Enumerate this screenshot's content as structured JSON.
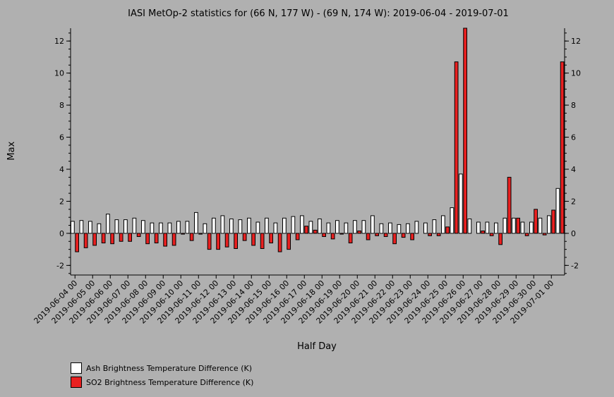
{
  "chart_data": {
    "type": "bar",
    "title": "IASI MetOp-2 statistics for (66 N, 177 W) - (69 N, 174 W): 2019-06-04 - 2019-07-01",
    "xlabel": "Half Day",
    "ylabel": "Max",
    "ylim": [
      -2.6,
      12.8
    ],
    "yticks": [
      -2,
      0,
      2,
      4,
      6,
      8,
      10,
      12
    ],
    "grid": false,
    "legend_position": "bottom-left",
    "x_tick_labels": [
      "2019-06-04 00",
      "2019-06-05 00",
      "2019-06-06 00",
      "2019-06-07 00",
      "2019-06-08 00",
      "2019-06-09 00",
      "2019-06-10 00",
      "2019-06-11 00",
      "2019-06-12 00",
      "2019-06-13 00",
      "2019-06-14 00",
      "2019-06-15 00",
      "2019-06-16 00",
      "2019-06-17 00",
      "2019-06-18 00",
      "2019-06-19 00",
      "2019-06-20 00",
      "2019-06-21 00",
      "2019-06-22 00",
      "2019-06-23 00",
      "2019-06-24 00",
      "2019-06-25 00",
      "2019-06-26 00",
      "2019-06-27 00",
      "2019-06-28 00",
      "2019-06-29 00",
      "2019-06-30 00",
      "2019-07-01 00"
    ],
    "series": [
      {
        "name": "Ash Brightness Temperature Difference (K)",
        "color": "#ffffff",
        "values": [
          0.75,
          0.8,
          0.75,
          0.6,
          1.2,
          0.85,
          0.85,
          0.95,
          0.8,
          0.65,
          0.65,
          0.65,
          0.75,
          0.75,
          1.3,
          0.6,
          0.95,
          1.1,
          0.9,
          0.85,
          0.95,
          0.7,
          0.95,
          0.65,
          0.95,
          1.05,
          1.1,
          0.75,
          0.9,
          0.65,
          0.8,
          0.65,
          0.8,
          0.8,
          1.1,
          0.6,
          0.65,
          0.55,
          0.6,
          0.75,
          0.65,
          0.85,
          1.1,
          1.6,
          3.7,
          0.9,
          0.7,
          0.7,
          0.65,
          0.95,
          0.95,
          0.7,
          0.7,
          0.95,
          1.1,
          2.8
        ]
      },
      {
        "name": "SO2 Brightness Temperature Difference (K)",
        "color": "#e82020",
        "values": [
          -1.15,
          -0.9,
          -0.75,
          -0.6,
          -0.65,
          -0.5,
          -0.5,
          -0.2,
          -0.65,
          -0.6,
          -0.8,
          -0.75,
          -0.05,
          -0.45,
          -0.05,
          -1.0,
          -1.0,
          -0.85,
          -0.95,
          -0.45,
          -0.75,
          -0.95,
          -0.6,
          -1.15,
          -1.0,
          -0.4,
          0.45,
          0.2,
          -0.2,
          -0.35,
          -0.05,
          -0.6,
          0.15,
          -0.4,
          -0.15,
          -0.2,
          -0.65,
          -0.25,
          -0.4,
          0.0,
          -0.15,
          -0.15,
          0.4,
          10.7,
          12.8,
          0.0,
          0.15,
          -0.15,
          -0.7,
          3.5,
          0.95,
          -0.15,
          1.5,
          -0.1,
          1.45,
          10.7
        ]
      }
    ]
  }
}
